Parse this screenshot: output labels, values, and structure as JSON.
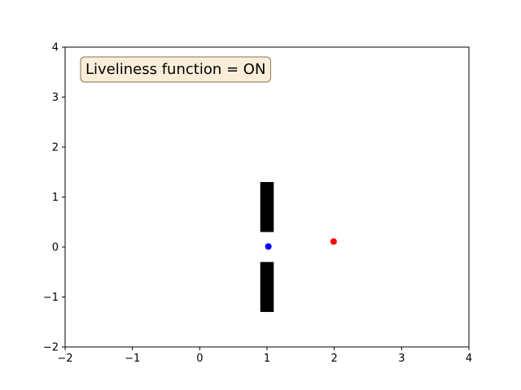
{
  "chart_data": {
    "type": "scatter",
    "title": "",
    "xlabel": "",
    "ylabel": "",
    "xlim": [
      -2,
      4
    ],
    "ylim": [
      -2,
      4
    ],
    "xticks": [
      "−2",
      "−1",
      "0",
      "1",
      "2",
      "3",
      "4"
    ],
    "yticks": [
      "−2",
      "−1",
      "0",
      "1",
      "2",
      "3",
      "4"
    ],
    "grid": false,
    "annotation": {
      "text": "Liveliness function = ON",
      "placement": "top-left",
      "box_facecolor": "#f5deb3",
      "box_edgecolor": "#8b7355"
    },
    "obstacles": [
      {
        "x0": 0.9,
        "x1": 1.1,
        "y0": 0.3,
        "y1": 1.3,
        "color": "#000000"
      },
      {
        "x0": 0.9,
        "x1": 1.1,
        "y0": -1.3,
        "y1": -0.3,
        "color": "#000000"
      }
    ],
    "points": [
      {
        "x": 1.02,
        "y": 0.01,
        "color": "#0000ff"
      },
      {
        "x": 1.99,
        "y": 0.11,
        "color": "#ff0000"
      }
    ]
  }
}
